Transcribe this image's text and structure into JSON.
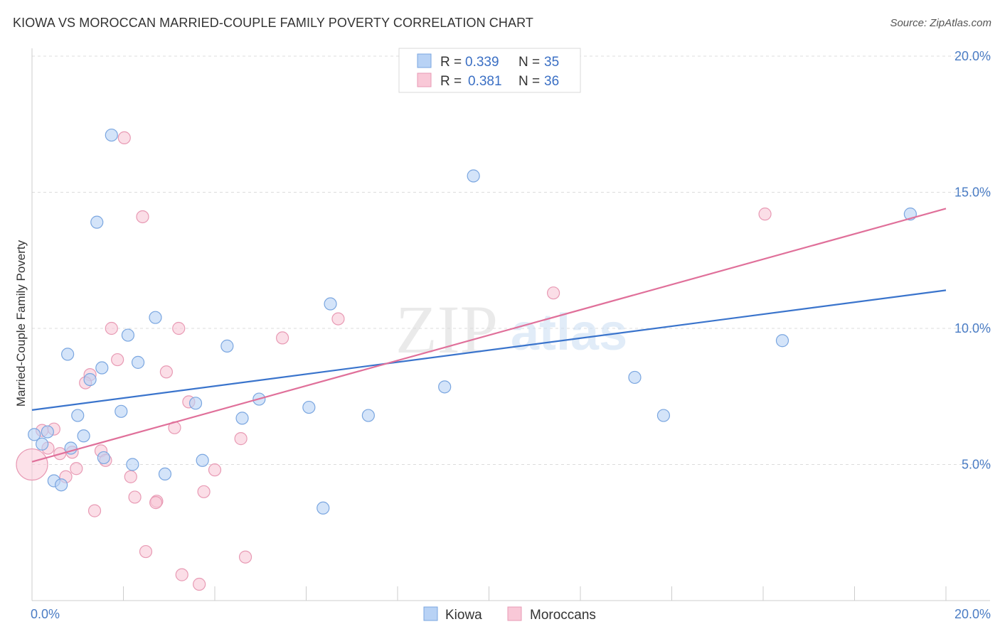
{
  "title": "KIOWA VS MOROCCAN MARRIED-COUPLE FAMILY POVERTY CORRELATION CHART",
  "source": "Source: ZipAtlas.com",
  "watermark": {
    "part1": "ZIP",
    "part2": "atlas"
  },
  "legend": {
    "r_label": "R =",
    "n_label": "N =",
    "series": [
      {
        "name": "Kiowa",
        "r": "0.339",
        "n": "35",
        "fill": "#b8d2f5",
        "stroke": "#7aa6e0",
        "line": "#3a74cc"
      },
      {
        "name": "Moroccans",
        "r": "0.381",
        "n": "36",
        "fill": "#f9c8d7",
        "stroke": "#e89ab4",
        "line": "#e0709a"
      }
    ]
  },
  "chart_data": {
    "type": "scatter",
    "xlabel": "",
    "ylabel": "Married-Couple Family Poverty",
    "xlim": [
      0,
      20
    ],
    "ylim": [
      0,
      20
    ],
    "x_tick_labels": [
      "0.0%",
      "20.0%"
    ],
    "y_ticks": [
      {
        "value": 5,
        "label": "5.0%"
      },
      {
        "value": 10,
        "label": "10.0%"
      },
      {
        "value": 15,
        "label": "15.0%"
      },
      {
        "value": 20,
        "label": "20.0%"
      }
    ],
    "grid": true,
    "series": [
      {
        "name": "Kiowa",
        "color": "#7aa6e0",
        "trend": {
          "x": [
            0,
            20
          ],
          "y": [
            7.0,
            11.4
          ]
        },
        "points": [
          {
            "x": 1.74,
            "y": 17.1
          },
          {
            "x": 9.66,
            "y": 15.6
          },
          {
            "x": 1.42,
            "y": 13.9
          },
          {
            "x": 19.22,
            "y": 14.2
          },
          {
            "x": 6.53,
            "y": 10.9
          },
          {
            "x": 2.7,
            "y": 10.4
          },
          {
            "x": 2.1,
            "y": 9.75
          },
          {
            "x": 4.27,
            "y": 9.35
          },
          {
            "x": 0.78,
            "y": 9.05
          },
          {
            "x": 16.42,
            "y": 9.55
          },
          {
            "x": 2.32,
            "y": 8.75
          },
          {
            "x": 1.53,
            "y": 8.55
          },
          {
            "x": 1.27,
            "y": 8.12
          },
          {
            "x": 13.19,
            "y": 8.2
          },
          {
            "x": 9.03,
            "y": 7.85
          },
          {
            "x": 3.58,
            "y": 7.25
          },
          {
            "x": 4.97,
            "y": 7.4
          },
          {
            "x": 6.06,
            "y": 7.1
          },
          {
            "x": 1.95,
            "y": 6.95
          },
          {
            "x": 1.0,
            "y": 6.8
          },
          {
            "x": 7.36,
            "y": 6.8
          },
          {
            "x": 13.82,
            "y": 6.8
          },
          {
            "x": 4.6,
            "y": 6.7
          },
          {
            "x": 0.34,
            "y": 6.2
          },
          {
            "x": 0.05,
            "y": 6.1
          },
          {
            "x": 1.13,
            "y": 6.05
          },
          {
            "x": 0.22,
            "y": 5.75
          },
          {
            "x": 0.85,
            "y": 5.6
          },
          {
            "x": 1.57,
            "y": 5.25
          },
          {
            "x": 3.73,
            "y": 5.15
          },
          {
            "x": 2.2,
            "y": 5.0
          },
          {
            "x": 2.91,
            "y": 4.65
          },
          {
            "x": 0.48,
            "y": 4.4
          },
          {
            "x": 0.64,
            "y": 4.25
          },
          {
            "x": 6.37,
            "y": 3.4
          }
        ]
      },
      {
        "name": "Moroccans",
        "color": "#e89ab4",
        "trend": {
          "x": [
            0,
            20
          ],
          "y": [
            5.1,
            14.4
          ]
        },
        "points": [
          {
            "x": 2.02,
            "y": 17.0
          },
          {
            "x": 2.42,
            "y": 14.1
          },
          {
            "x": 16.04,
            "y": 14.2
          },
          {
            "x": 11.41,
            "y": 11.3
          },
          {
            "x": 6.7,
            "y": 10.35
          },
          {
            "x": 1.74,
            "y": 10.0
          },
          {
            "x": 3.21,
            "y": 10.0
          },
          {
            "x": 5.48,
            "y": 9.65
          },
          {
            "x": 1.87,
            "y": 8.85
          },
          {
            "x": 2.94,
            "y": 8.4
          },
          {
            "x": 1.27,
            "y": 8.3
          },
          {
            "x": 1.17,
            "y": 8.0
          },
          {
            "x": 3.43,
            "y": 7.3
          },
          {
            "x": 3.12,
            "y": 6.35
          },
          {
            "x": 0.48,
            "y": 6.3
          },
          {
            "x": 0.22,
            "y": 6.25
          },
          {
            "x": 4.57,
            "y": 5.95
          },
          {
            "x": 0.35,
            "y": 5.6
          },
          {
            "x": 1.51,
            "y": 5.5
          },
          {
            "x": 0.88,
            "y": 5.45
          },
          {
            "x": 0.61,
            "y": 5.4
          },
          {
            "x": 1.61,
            "y": 5.15
          },
          {
            "x": 0.0,
            "y": 5.0
          },
          {
            "x": 0.97,
            "y": 4.85
          },
          {
            "x": 4.0,
            "y": 4.8
          },
          {
            "x": 0.74,
            "y": 4.55
          },
          {
            "x": 2.16,
            "y": 4.55
          },
          {
            "x": 3.76,
            "y": 4.0
          },
          {
            "x": 2.25,
            "y": 3.8
          },
          {
            "x": 2.73,
            "y": 3.65
          },
          {
            "x": 2.71,
            "y": 3.6
          },
          {
            "x": 1.37,
            "y": 3.3
          },
          {
            "x": 2.49,
            "y": 1.8
          },
          {
            "x": 4.67,
            "y": 1.6
          },
          {
            "x": 3.28,
            "y": 0.95
          },
          {
            "x": 3.66,
            "y": 0.6
          }
        ]
      }
    ]
  }
}
